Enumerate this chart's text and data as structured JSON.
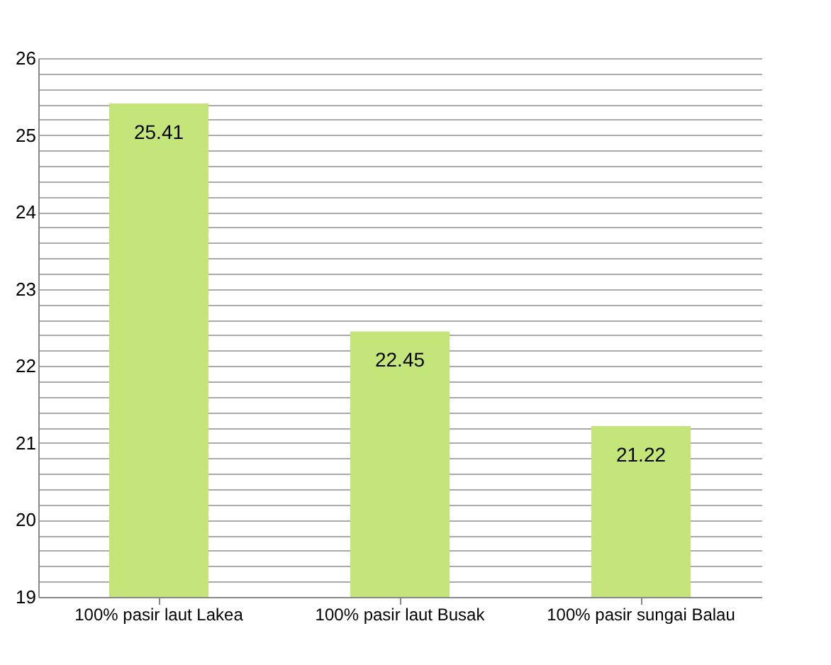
{
  "chart_data": {
    "type": "bar",
    "categories": [
      "100% pasir laut Lakea",
      "100% pasir laut Busak",
      "100% pasir sungai Balau"
    ],
    "values": [
      25.41,
      22.45,
      21.22
    ],
    "color": "#c4e57a",
    "data_labels": true,
    "grid": "y",
    "ylim": [
      19,
      26
    ],
    "yticks": [
      19,
      {
        "value": 19.2,
        "label": null
      },
      {
        "value": 19.4,
        "label": null
      },
      {
        "value": 19.6,
        "label": null
      },
      {
        "value": 19.8,
        "label": null
      },
      20,
      {
        "value": 20.2,
        "label": null
      },
      {
        "value": 20.4,
        "label": null
      },
      {
        "value": 20.6,
        "label": null
      },
      {
        "value": 20.8,
        "label": null
      },
      21,
      {
        "value": 21.2,
        "label": null
      },
      {
        "value": 21.4,
        "label": null
      },
      {
        "value": 21.6,
        "label": null
      },
      {
        "value": 21.8,
        "label": null
      },
      22,
      {
        "value": 22.2,
        "label": null
      },
      {
        "value": 22.4,
        "label": null
      },
      {
        "value": 22.6,
        "label": null
      },
      {
        "value": 22.8,
        "label": null
      },
      23,
      {
        "value": 23.2,
        "label": null
      },
      {
        "value": 23.4,
        "label": null
      },
      {
        "value": 23.6,
        "label": null
      },
      {
        "value": 23.8,
        "label": null
      },
      24,
      {
        "value": 24.2,
        "label": null
      },
      {
        "value": 24.4,
        "label": null
      },
      {
        "value": 24.6,
        "label": null
      },
      {
        "value": 24.8,
        "label": null
      },
      25,
      {
        "value": 25.2,
        "label": null
      },
      {
        "value": 25.4,
        "label": null
      },
      {
        "value": 25.6,
        "label": null
      },
      {
        "value": 25.8,
        "label": null
      },
      26
    ]
  }
}
